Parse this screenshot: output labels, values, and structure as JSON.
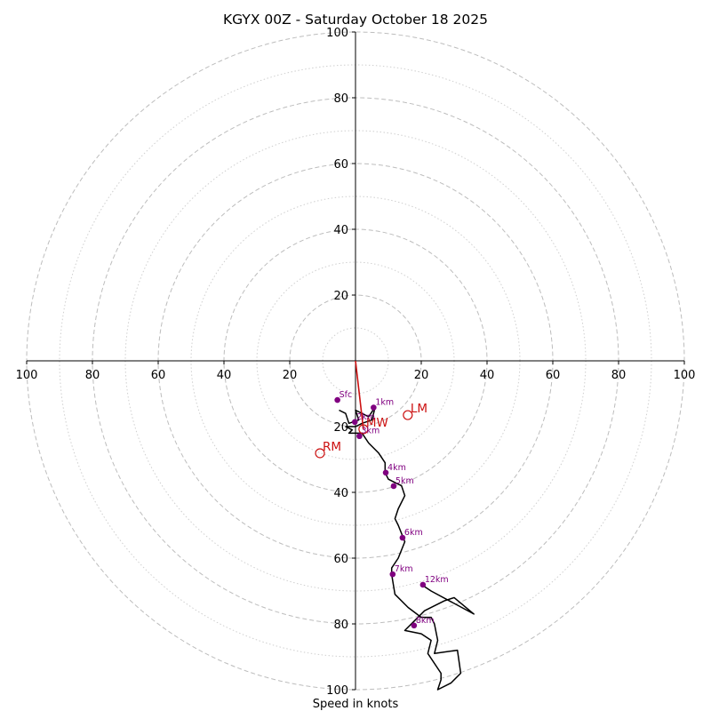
{
  "chart_data": {
    "type": "hodograph",
    "title": "KGYX 00Z - Saturday October 18 2025",
    "xlabel": "Speed in knots",
    "max_speed": 100,
    "major_rings": [
      20,
      40,
      60,
      80,
      100
    ],
    "minor_rings": [
      10,
      30,
      50,
      70,
      90
    ],
    "y_tick_labels": [
      "20",
      "40",
      "60",
      "80",
      "100"
    ],
    "x_tick_labels": [
      "100",
      "80",
      "60",
      "40",
      "20",
      "20",
      "40",
      "60",
      "80",
      "100"
    ],
    "x_tick_values": [
      -100,
      -80,
      -60,
      -40,
      -20,
      20,
      40,
      60,
      80,
      100
    ],
    "hodograph_points": [
      [
        -5,
        -15
      ],
      [
        -3,
        -16
      ],
      [
        -2,
        -19
      ],
      [
        1,
        -18
      ],
      [
        0,
        -15
      ],
      [
        2,
        -16
      ],
      [
        4,
        -17
      ],
      [
        6,
        -14
      ],
      [
        5,
        -18
      ],
      [
        2,
        -19
      ],
      [
        0,
        -20
      ],
      [
        -3,
        -20
      ],
      [
        -1,
        -21
      ],
      [
        -2,
        -22
      ],
      [
        0,
        -22
      ],
      [
        2,
        -22
      ],
      [
        4,
        -25
      ],
      [
        7,
        -28
      ],
      [
        9,
        -31
      ],
      [
        9,
        -34
      ],
      [
        10,
        -36
      ],
      [
        12,
        -37
      ],
      [
        14,
        -38
      ],
      [
        15,
        -41
      ],
      [
        13,
        -45
      ],
      [
        12,
        -48
      ],
      [
        13,
        -50
      ],
      [
        15,
        -55
      ],
      [
        13,
        -60
      ],
      [
        11,
        -63
      ],
      [
        11,
        -65
      ],
      [
        12,
        -71
      ],
      [
        16,
        -75
      ],
      [
        20,
        -78
      ],
      [
        23,
        -78
      ],
      [
        24,
        -80
      ],
      [
        25,
        -85
      ],
      [
        24,
        -89
      ],
      [
        31,
        -88
      ],
      [
        32,
        -95
      ],
      [
        29,
        -98
      ],
      [
        25,
        -100
      ],
      [
        26,
        -97
      ],
      [
        26,
        -95
      ],
      [
        22,
        -89
      ],
      [
        23,
        -85
      ],
      [
        20,
        -83
      ],
      [
        15,
        -82
      ],
      [
        18,
        -79
      ],
      [
        21,
        -76
      ],
      [
        27,
        -73
      ],
      [
        30,
        -72
      ],
      [
        36,
        -77
      ],
      [
        23,
        -70
      ],
      [
        20,
        -68
      ]
    ],
    "height_markers": [
      {
        "label": "Sfc",
        "u": -5.5,
        "v": -11.9
      },
      {
        "label": "1km",
        "u": 5.5,
        "v": -14.2
      },
      {
        "label": "2km",
        "u": -0.2,
        "v": -18.6
      },
      {
        "label": "3km",
        "u": 1.2,
        "v": -22.9
      },
      {
        "label": "4km",
        "u": 9.2,
        "v": -34.0
      },
      {
        "label": "5km",
        "u": 11.6,
        "v": -38.1
      },
      {
        "label": "6km",
        "u": 14.3,
        "v": -53.8
      },
      {
        "label": "7km",
        "u": 11.3,
        "v": -64.9
      },
      {
        "label": "8km",
        "u": 17.8,
        "v": -80.5
      },
      {
        "label": "12km",
        "u": 20.5,
        "v": -68.1
      }
    ],
    "storm_motions": [
      {
        "label": "LM",
        "u": 15.9,
        "v": -16.5
      },
      {
        "label": "MW",
        "u": 2.4,
        "v": -20.8
      },
      {
        "label": "RM",
        "u": -10.8,
        "v": -28.1
      }
    ],
    "shear_vector": {
      "from": [
        0,
        0
      ],
      "to": [
        2.4,
        -20.8
      ]
    },
    "colors": {
      "hodograph": "#000000",
      "height_markers": "#800080",
      "storm_motion": "#cc1111",
      "major_rings": "#bdbdbd",
      "minor_rings": "#cfcfcf"
    }
  }
}
